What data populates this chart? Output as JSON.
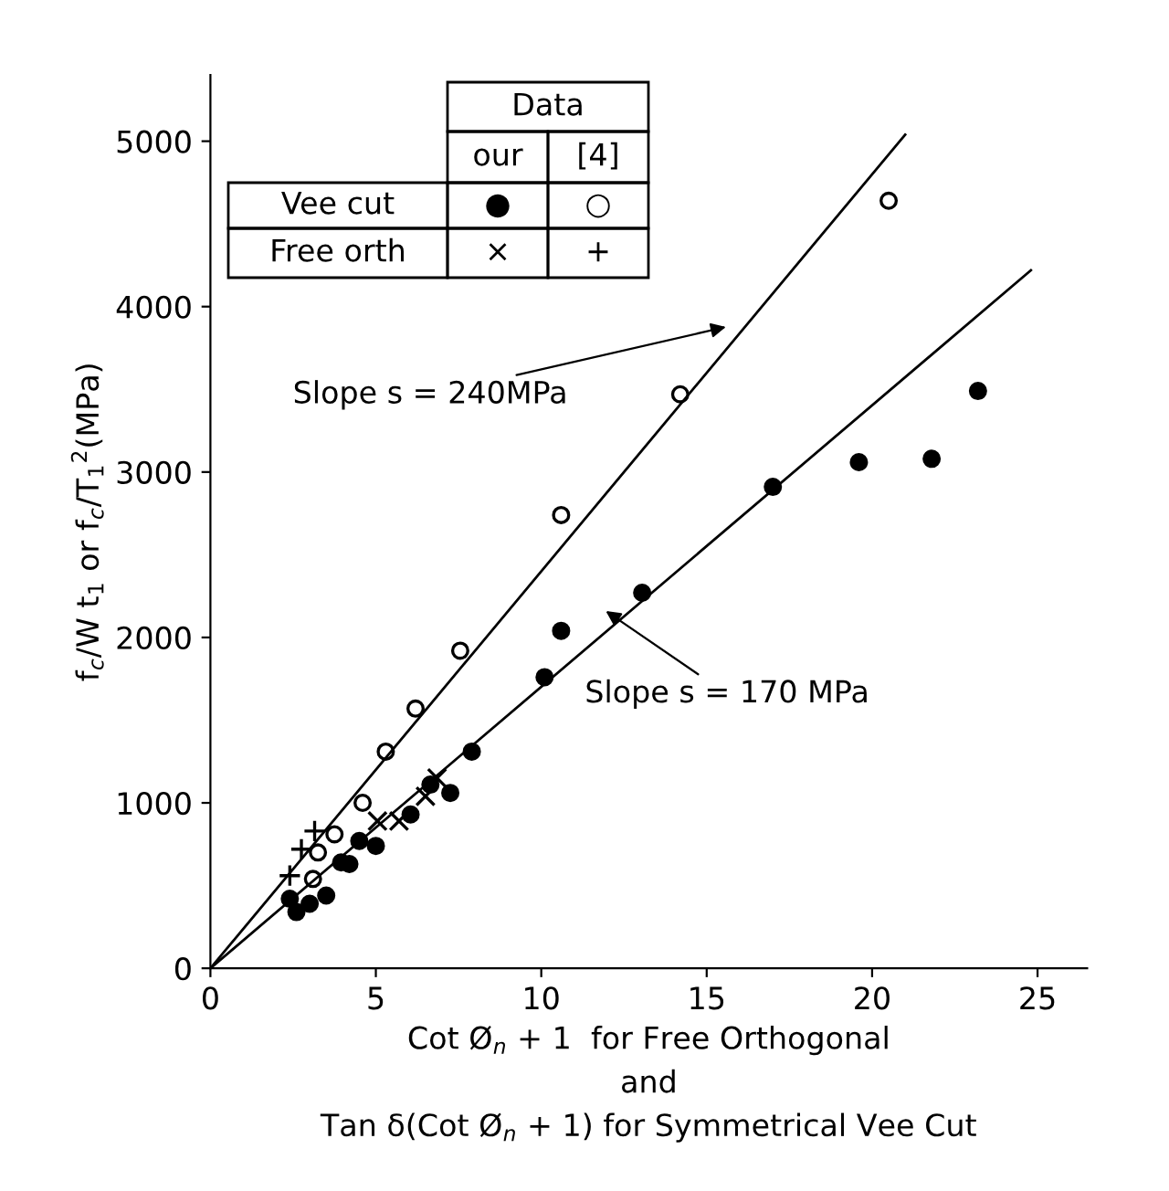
{
  "chart_data": {
    "type": "scatter",
    "xlabel": "Cot Ø$_{n}$ + 1  for Free Orthogonal\nand\nTan δ(Cot Ø$_{n}$ + 1) for Symmetrical Vee Cut",
    "ylabel": "f$_{c}$/W t$_{1}$ or f$_{c}$/T$_{1}$$^{2}$(MPa)",
    "xlim": [
      0,
      26.5
    ],
    "ylim": [
      0,
      5400
    ],
    "xticks": [
      0,
      5,
      10,
      15,
      20,
      25
    ],
    "yticks": [
      0,
      1000,
      2000,
      3000,
      4000,
      5000
    ],
    "grid": false,
    "series": [
      {
        "color": "#000000",
        "marker": "circle",
        "x": [
          2.4,
          2.6,
          3.0,
          3.5,
          3.95,
          4.2,
          4.5,
          5.0,
          6.05,
          6.65,
          7.25,
          7.9,
          10.1,
          10.6,
          13.05,
          17.0,
          19.6,
          21.8,
          23.2
        ],
        "values": [
          420,
          340,
          390,
          440,
          640,
          630,
          770,
          740,
          930,
          1110,
          1060,
          1310,
          1760,
          2040,
          2270,
          2910,
          3060,
          3080,
          3490
        ]
      },
      {
        "color": "#ffffff",
        "marker": "circle",
        "x": [
          3.1,
          3.25,
          3.75,
          4.6,
          5.3,
          6.2,
          7.55,
          10.6,
          14.2,
          20.5
        ],
        "values": [
          540,
          700,
          810,
          1000,
          1310,
          1570,
          1920,
          2740,
          3470,
          4640
        ]
      },
      {
        "color": "#000000",
        "marker": "x",
        "x": [
          5.05,
          5.7,
          6.5,
          6.85
        ],
        "values": [
          890,
          890,
          1040,
          1150
        ]
      },
      {
        "color": "#000000",
        "marker": "plus",
        "x": [
          2.4,
          2.75,
          3.15
        ],
        "values": [
          560,
          720,
          830
        ]
      },
      {
        "type": "line",
        "color": "#000000",
        "marker": "none",
        "x": [
          0,
          21
        ],
        "values": [
          0,
          5040
        ]
      },
      {
        "type": "line",
        "color": "#000000",
        "marker": "none",
        "x": [
          0,
          24.8
        ],
        "values": [
          0,
          4220
        ]
      }
    ],
    "annotations": [
      "Slope s = 240MPa",
      "Slope s = 170 MPa",
      "Data",
      "our",
      "[4]",
      "Vee cut",
      "Free orth",
      "●",
      "○",
      "×",
      "+"
    ]
  }
}
